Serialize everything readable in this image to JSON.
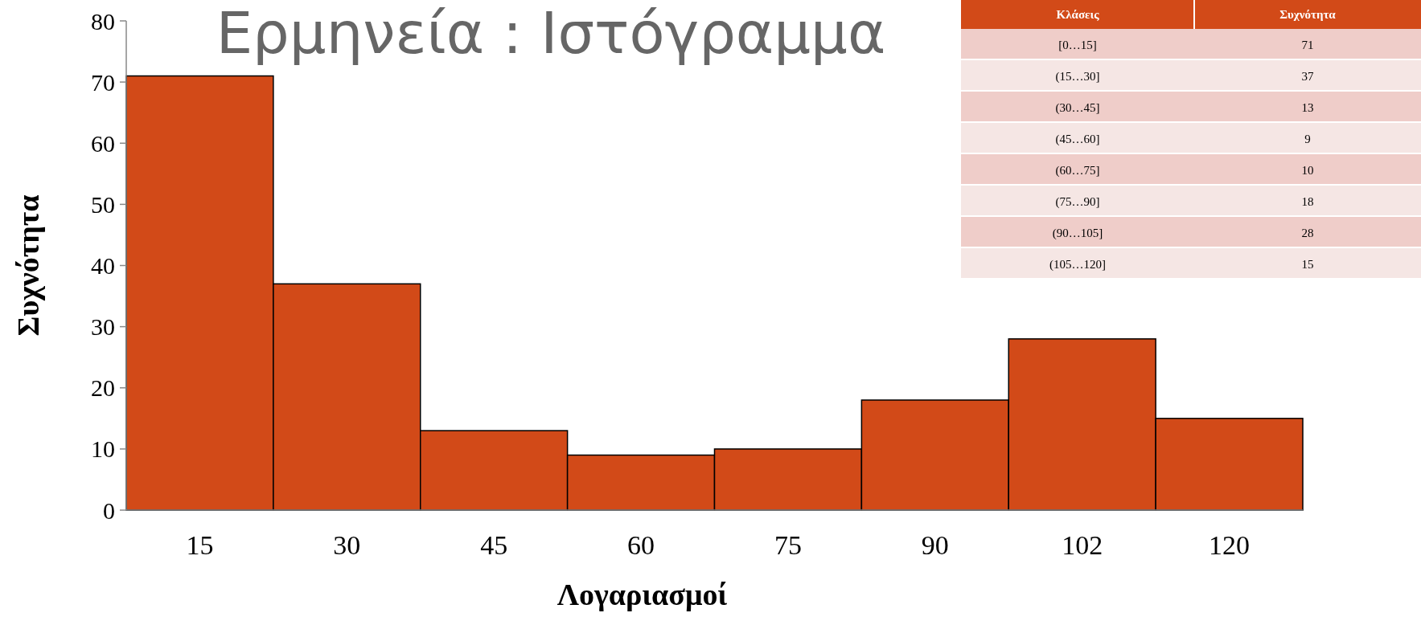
{
  "chart_data": [
    {
      "type": "bar",
      "title": "Ερμηνεία : Ιστόγραμμα",
      "xlabel": "Λογαριασμοί",
      "ylabel": "Συχνότητα",
      "categories": [
        "15",
        "30",
        "45",
        "60",
        "75",
        "90",
        "102",
        "120"
      ],
      "values": [
        71,
        37,
        13,
        9,
        10,
        18,
        28,
        15
      ],
      "color": "#d24a18",
      "ylim": [
        0,
        80
      ],
      "yticks": [
        0,
        10,
        20,
        30,
        40,
        50,
        60,
        70,
        80
      ],
      "grid": false
    },
    {
      "type": "other",
      "xlabel": "Κλάσεις",
      "ylabel": "Συχνότητα",
      "categories": [
        "[0…15]",
        "(15…30]",
        "(30…45]",
        "(45…60]",
        "(60…75]",
        "(75…90]",
        "(90…105]",
        "(105…120]"
      ],
      "values": [
        71,
        37,
        13,
        9,
        10,
        18,
        28,
        15
      ],
      "data_labels": true
    }
  ]
}
